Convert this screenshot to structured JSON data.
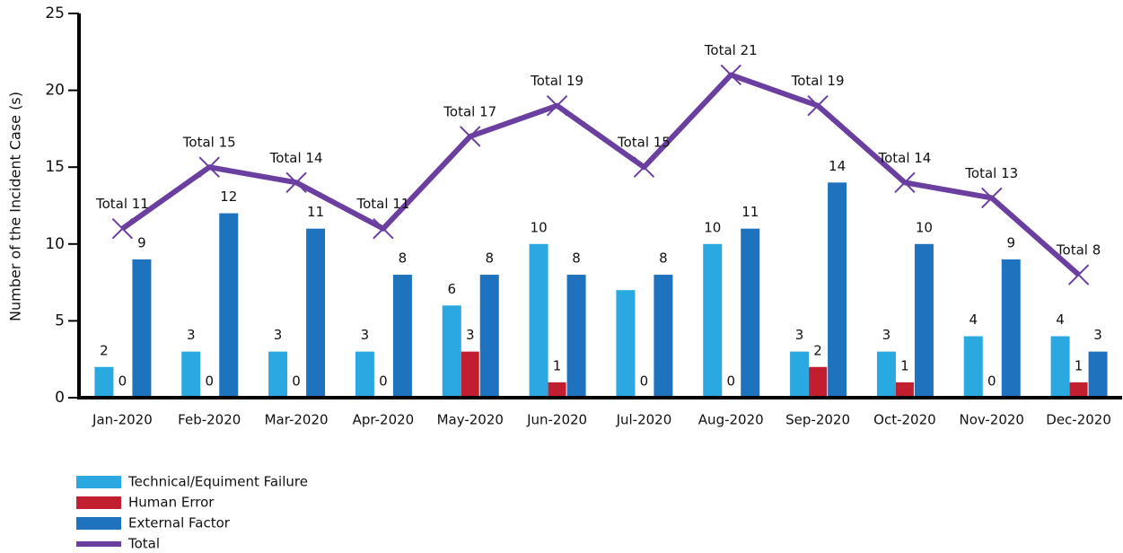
{
  "chart_data": {
    "type": "bar-line",
    "y_label": "Number of the Incident Case (s)",
    "categories": [
      "Jan-2020",
      "Feb-2020",
      "Mar-2020",
      "Apr-2020",
      "May-2020",
      "Jun-2020",
      "Jul-2020",
      "Aug-2020",
      "Sep-2020",
      "Oct-2020",
      "Nov-2020",
      "Dec-2020"
    ],
    "ylim": [
      0,
      25
    ],
    "yticks": [
      0,
      5,
      10,
      15,
      20,
      25
    ],
    "grid": false,
    "legend": "bottom-left",
    "series": [
      {
        "name": "Technical/Equiment Failure",
        "type": "bar",
        "color": "#2aa8e0",
        "values": [
          2,
          3,
          3,
          3,
          6,
          10,
          7,
          10,
          3,
          3,
          4,
          4
        ],
        "value_labels": [
          "2",
          "3",
          "3",
          "3",
          "6",
          "10",
          null,
          "10",
          "3",
          "3",
          "4",
          "4"
        ]
      },
      {
        "name": "Human Error",
        "type": "bar",
        "color": "#c11f2f",
        "values": [
          0,
          0,
          0,
          0,
          3,
          1,
          0,
          0,
          2,
          1,
          0,
          1
        ]
      },
      {
        "name": "External Factor",
        "type": "bar",
        "color": "#1f72bd",
        "values": [
          9,
          12,
          11,
          8,
          8,
          8,
          8,
          11,
          14,
          10,
          9,
          3
        ]
      },
      {
        "name": "Total",
        "type": "line",
        "color": "#6b3fa0",
        "values": [
          11,
          15,
          14,
          11,
          17,
          19,
          15,
          21,
          19,
          14,
          13,
          8
        ],
        "value_labels": [
          "Total 11",
          "Total 15",
          "Total 14",
          "Total 11",
          "Total 17",
          "Total 19",
          "Total 15",
          "Total 21",
          "Total 19",
          "Total 14",
          "Total 13",
          "Total 8"
        ]
      }
    ]
  }
}
